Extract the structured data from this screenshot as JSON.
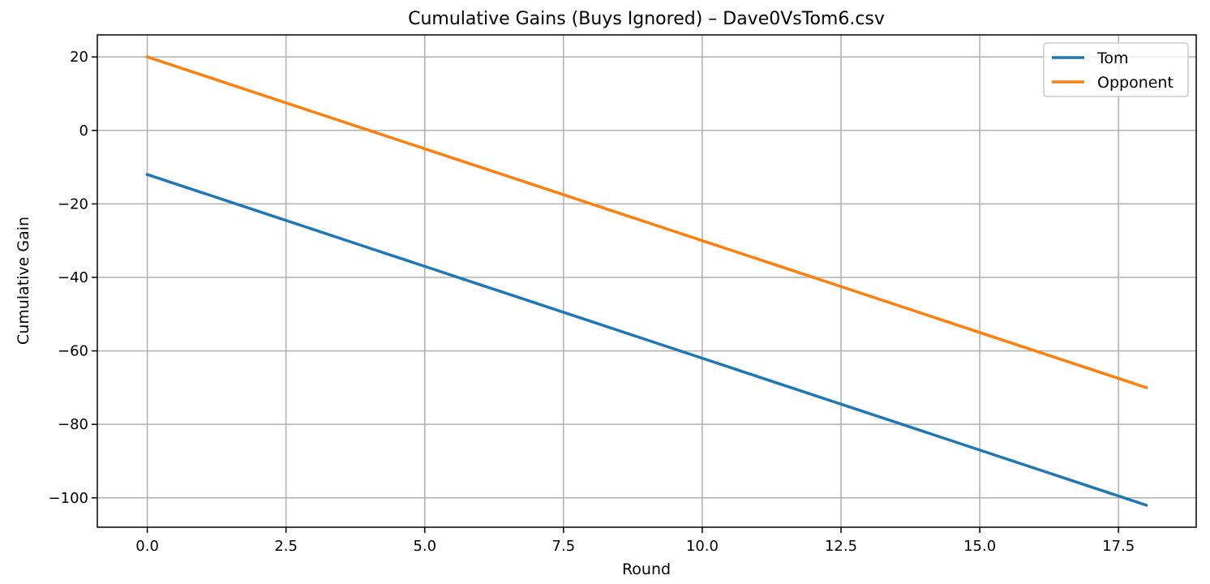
{
  "chart_data": {
    "type": "line",
    "title": "Cumulative Gains (Buys Ignored) – Dave0VsTom6.csv",
    "xlabel": "Round",
    "ylabel": "Cumulative Gain",
    "xlim": [
      -0.9,
      18.9
    ],
    "ylim": [
      -108,
      26
    ],
    "xticks": [
      0.0,
      2.5,
      5.0,
      7.5,
      10.0,
      12.5,
      15.0,
      17.5
    ],
    "xtick_labels": [
      "0.0",
      "2.5",
      "5.0",
      "7.5",
      "10.0",
      "12.5",
      "15.0",
      "17.5"
    ],
    "yticks": [
      20,
      0,
      -20,
      -40,
      -60,
      -80,
      -100
    ],
    "ytick_labels": [
      "20",
      "0",
      "−20",
      "−40",
      "−60",
      "−80",
      "−100"
    ],
    "grid": true,
    "legend_position": "top-right",
    "x": [
      0,
      1,
      2,
      3,
      4,
      5,
      6,
      7,
      8,
      9,
      10,
      11,
      12,
      13,
      14,
      15,
      16,
      17,
      18
    ],
    "series": [
      {
        "name": "Tom",
        "color": "#1f77b4",
        "values": [
          -12,
          -17,
          -22,
          -27,
          -32,
          -37,
          -42,
          -47,
          -52,
          -57,
          -62,
          -67,
          -72,
          -77,
          -82,
          -87,
          -92,
          -97,
          -102
        ]
      },
      {
        "name": "Opponent",
        "color": "#ff7f0e",
        "values": [
          20,
          15,
          10,
          5,
          0,
          -5,
          -10,
          -15,
          -20,
          -25,
          -30,
          -35,
          -40,
          -45,
          -50,
          -55,
          -60,
          -65,
          -70
        ]
      }
    ]
  }
}
